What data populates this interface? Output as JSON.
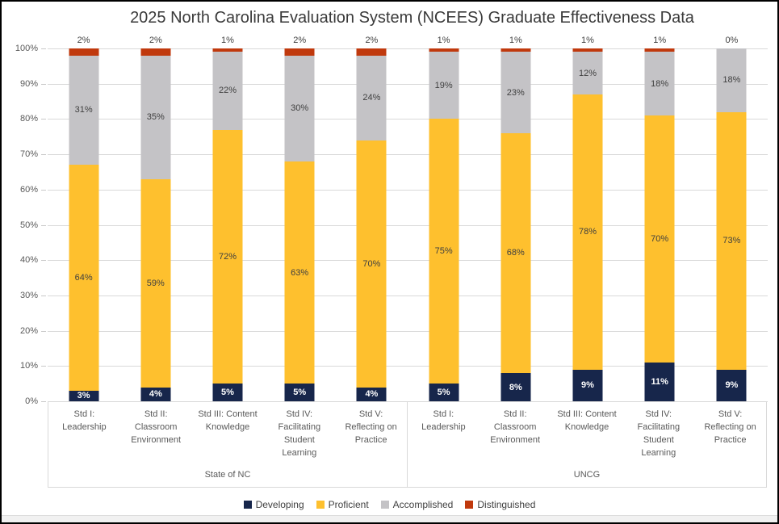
{
  "chart_data": {
    "type": "bar",
    "subtype": "stacked-100",
    "title": "2025 North Carolina Evaluation System (NCEES) Graduate Effectiveness Data",
    "value_suffix": "%",
    "grid": true,
    "legend_position": "bottom",
    "y_axis": {
      "min": 0,
      "max": 100,
      "step": 10,
      "ticks": [
        "0%",
        "10%",
        "20%",
        "30%",
        "40%",
        "50%",
        "60%",
        "70%",
        "80%",
        "90%",
        "100%"
      ]
    },
    "series": [
      {
        "name": "Developing",
        "color": "#17264B",
        "label_placement": "inside",
        "label_style": "white-bold"
      },
      {
        "name": "Proficient",
        "color": "#FEC02E",
        "label_placement": "inside",
        "label_style": "dark"
      },
      {
        "name": "Accomplished",
        "color": "#C4C3C6",
        "label_placement": "inside",
        "label_style": "dark"
      },
      {
        "name": "Distinguished",
        "color": "#C0390D",
        "label_placement": "above",
        "label_style": "dark"
      }
    ],
    "categories": [
      {
        "id": "std-1",
        "lines": [
          "Std I:",
          "Leadership"
        ]
      },
      {
        "id": "std-2",
        "lines": [
          "Std II:",
          "Classroom",
          "Environment"
        ]
      },
      {
        "id": "std-3",
        "lines": [
          "Std III: Content",
          "Knowledge"
        ]
      },
      {
        "id": "std-4",
        "lines": [
          "Std IV:",
          "Facilitating",
          "Student",
          "Learning"
        ]
      },
      {
        "id": "std-5",
        "lines": [
          "Std V:",
          "Reflecting on",
          "Practice"
        ]
      }
    ],
    "groups": [
      {
        "label": "State of NC",
        "values": [
          [
            3,
            64,
            31,
            2
          ],
          [
            4,
            59,
            35,
            2
          ],
          [
            5,
            72,
            22,
            1
          ],
          [
            5,
            63,
            30,
            2
          ],
          [
            4,
            70,
            24,
            2
          ]
        ]
      },
      {
        "label": "UNCG",
        "values": [
          [
            5,
            75,
            19,
            1
          ],
          [
            8,
            68,
            23,
            1
          ],
          [
            9,
            78,
            12,
            1
          ],
          [
            11,
            70,
            18,
            1
          ],
          [
            9,
            73,
            18,
            0
          ]
        ]
      }
    ]
  }
}
